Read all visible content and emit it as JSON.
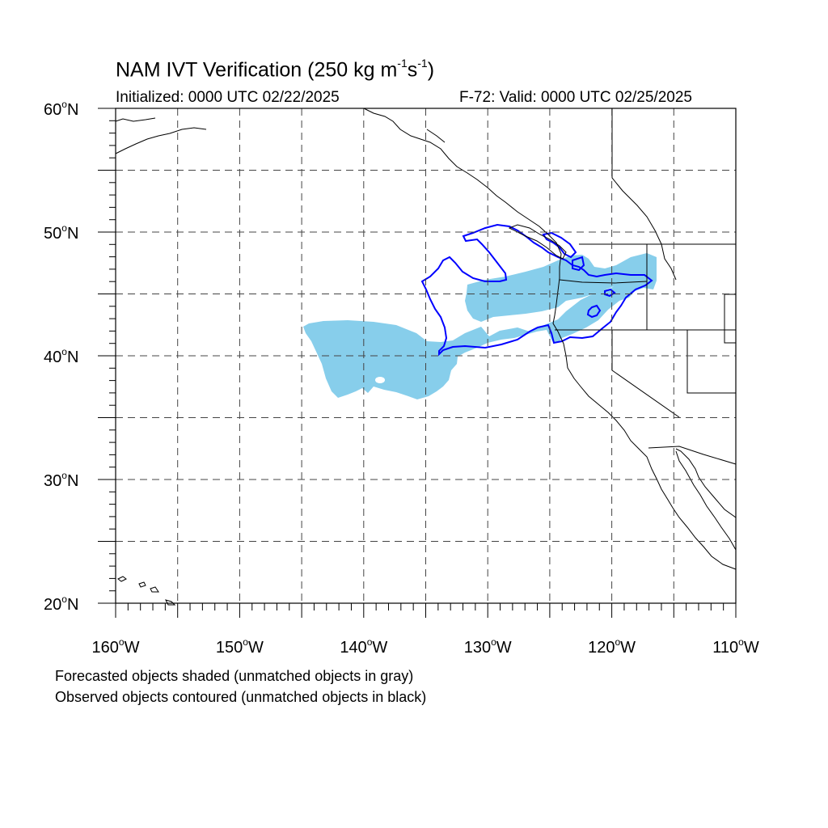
{
  "title": {
    "prefix": "NAM IVT Verification (250 kg m",
    "sup1": "-1",
    "mid": "s",
    "sup2": "-1",
    "suffix": ")"
  },
  "initialized": "Initialized: 0000 UTC 02/22/2025",
  "valid": "F-72: Valid: 0000 UTC 02/25/2025",
  "notes": [
    "Forecasted objects shaded (unmatched objects in gray)",
    "Observed objects contoured (unmatched objects in black)"
  ],
  "map": {
    "lon_range": [
      -160,
      -110
    ],
    "lat_range": [
      20,
      60
    ],
    "grid_lines": "dashed",
    "lat_labels": [
      "20",
      "30",
      "40",
      "50",
      "60"
    ],
    "lat_suffix": "N",
    "lon_labels": [
      "160",
      "150",
      "140",
      "130",
      "120",
      "110"
    ],
    "lon_suffix": "W",
    "colors": {
      "forecast_fill": "#87ceeb",
      "observed_contour": "#0000ff",
      "coastline": "#000000",
      "grid": "#444444"
    }
  }
}
